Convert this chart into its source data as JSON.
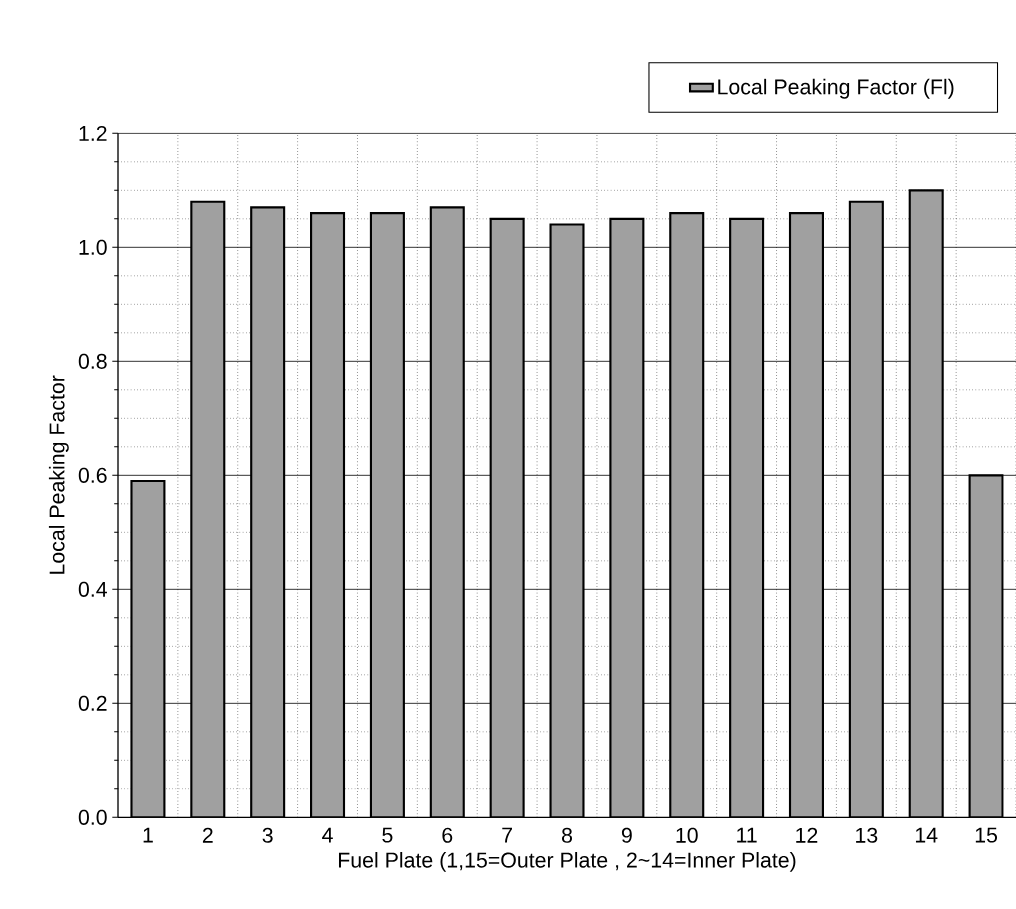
{
  "chart_data": {
    "type": "bar",
    "xlabel": "Fuel Plate (1,15=Outer Plate ,  2~14=Inner Plate)",
    "ylabel": "Local Peaking Factor",
    "categories": [
      "1",
      "2",
      "3",
      "4",
      "5",
      "6",
      "7",
      "8",
      "9",
      "10",
      "11",
      "12",
      "13",
      "14",
      "15"
    ],
    "series": [
      {
        "name": "Local Peaking Factor (Fl)",
        "color": "#a0a0a0",
        "values": [
          0.59,
          1.08,
          1.07,
          1.06,
          1.06,
          1.07,
          1.05,
          1.04,
          1.05,
          1.06,
          1.05,
          1.06,
          1.08,
          1.1,
          0.6
        ]
      }
    ],
    "ylim": [
      0,
      1.2
    ],
    "yticks": [
      {
        "value": 0,
        "label": "0.0"
      },
      0.2,
      0.4,
      0.6,
      0.8,
      {
        "value": 1,
        "label": "1.0"
      },
      1.2
    ],
    "grid": true,
    "legend": "top right"
  }
}
